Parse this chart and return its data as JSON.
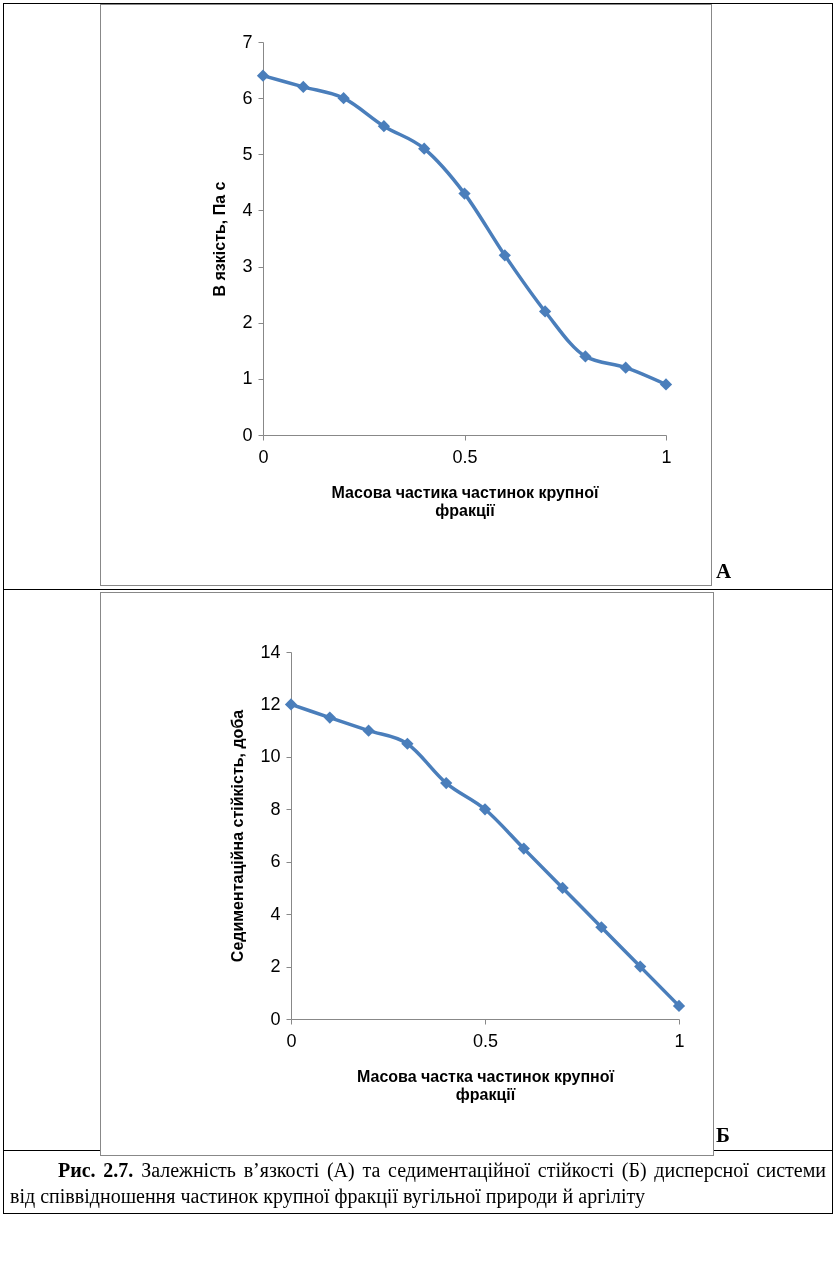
{
  "chart_data": [
    {
      "type": "line",
      "xlabel": "Масова частика частинок крупної фракції",
      "ylabel": "В язкість, Па с",
      "x": [
        0,
        0.1,
        0.2,
        0.3,
        0.4,
        0.5,
        0.6,
        0.7,
        0.8,
        0.9,
        1
      ],
      "series": [
        {
          "color": "#4a7ebb",
          "values": [
            6.4,
            6.2,
            6.0,
            5.5,
            5.1,
            4.3,
            3.2,
            2.2,
            1.4,
            1.2,
            0.9
          ]
        }
      ],
      "xlim": [
        0,
        1
      ],
      "xticks": [
        0,
        0.5,
        1
      ],
      "ylim": [
        0,
        7
      ],
      "yticks": [
        0,
        1,
        2,
        3,
        4,
        5,
        6,
        7
      ],
      "marker": "diamond",
      "line_style": "solid",
      "grid": false,
      "legend": false,
      "annotations": [
        "А"
      ]
    },
    {
      "type": "line",
      "xlabel": "Масова частка частинок крупної фракції",
      "ylabel": "Седиментаційна стійкість, доба",
      "x": [
        0,
        0.1,
        0.2,
        0.3,
        0.4,
        0.5,
        0.6,
        0.7,
        0.8,
        0.9,
        1
      ],
      "series": [
        {
          "color": "#4a7ebb",
          "values": [
            12,
            11.5,
            11,
            10.5,
            9,
            8,
            6.5,
            5,
            3.5,
            2,
            0.5
          ]
        }
      ],
      "xlim": [
        0,
        1
      ],
      "xticks": [
        0,
        0.5,
        1
      ],
      "ylim": [
        0,
        14
      ],
      "yticks": [
        0,
        2,
        4,
        6,
        8,
        10,
        12,
        14
      ],
      "marker": "diamond",
      "line_style": "solid",
      "grid": false,
      "legend": false,
      "annotations": [
        "Б",
        "Рис. 2.7.",
        "Залежність в’язкості (А) та седиментаційної стійкості (Б) дисперсної системи від співвідношення частинок крупної фракції вугільної природи й аргіліту"
      ]
    }
  ]
}
